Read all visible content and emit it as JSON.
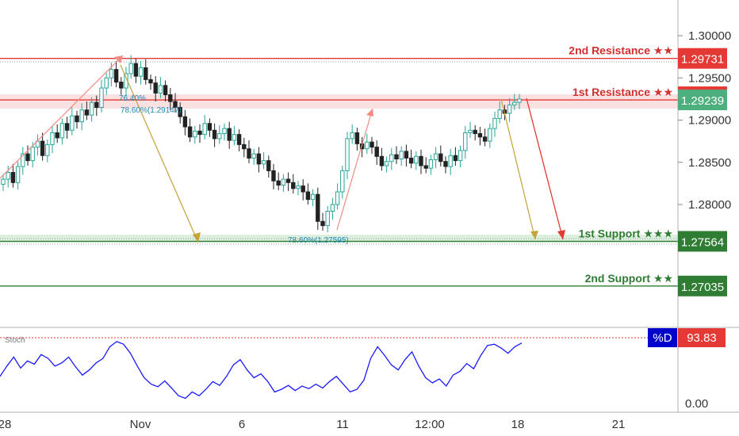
{
  "chart_data": {
    "type": "candlestick",
    "price_axis": {
      "ylim": [
        1.2675,
        1.3015
      ],
      "ticks": [
        "1.30000",
        "1.29500",
        "1.29000",
        "1.28500",
        "1.28000"
      ]
    },
    "time_axis": {
      "ticks": [
        "28",
        "Nov",
        "6",
        "11",
        "12:00",
        "18",
        "21"
      ]
    },
    "levels": [
      {
        "name": "2nd Resistance",
        "stars": "★★",
        "value": "1.29731",
        "price": 1.29731,
        "color": "#e53935",
        "label_color": "#d32f2f"
      },
      {
        "name": "1st Resistance",
        "stars": "★★",
        "value": "1.29239",
        "price": 1.29239,
        "color": "#e53935",
        "label_color": "#d32f2f"
      },
      {
        "name": "1st Support",
        "stars": "★★★",
        "value": "1.27564",
        "price": 1.27564,
        "color": "#2e7d32",
        "label_color": "#2e7d32"
      },
      {
        "name": "2nd Support",
        "stars": "★★",
        "value": "1.27035",
        "price": 1.27035,
        "color": "#2e7d32",
        "label_color": "#2e7d32"
      }
    ],
    "current_price": {
      "value": "1.29239",
      "color": "#4caf7d"
    },
    "fib_labels": [
      "76.40%",
      "78.60%(1.29147)",
      "78.60%(1.27595)"
    ],
    "candles_close": [
      1.283,
      1.2838,
      1.2826,
      1.2845,
      1.286,
      1.2852,
      1.2868,
      1.2875,
      1.2858,
      1.2871,
      1.2885,
      1.2879,
      1.2896,
      1.2888,
      1.2905,
      1.2898,
      1.2912,
      1.2906,
      1.2921,
      1.2915,
      1.2938,
      1.295,
      1.296,
      1.2945,
      1.2938,
      1.2955,
      1.2967,
      1.2952,
      1.2962,
      1.2948,
      1.2944,
      1.2932,
      1.2941,
      1.293,
      1.2922,
      1.2915,
      1.2904,
      1.2892,
      1.288,
      1.2887,
      1.2883,
      1.2896,
      1.2888,
      1.2878,
      1.2884,
      1.289,
      1.2876,
      1.2883,
      1.2871,
      1.2866,
      1.2855,
      1.286,
      1.2848,
      1.2852,
      1.284,
      1.2828,
      1.2823,
      1.283,
      1.2826,
      1.2819,
      1.2822,
      1.2815,
      1.2806,
      1.2812,
      1.278,
      1.2775,
      1.2792,
      1.28,
      1.2815,
      1.284,
      1.2878,
      1.2885,
      1.2872,
      1.2866,
      1.2874,
      1.2868,
      1.2857,
      1.2846,
      1.2851,
      1.2859,
      1.2854,
      1.2863,
      1.2855,
      1.2849,
      1.2857,
      1.2846,
      1.2843,
      1.2853,
      1.286,
      1.2851,
      1.2845,
      1.2858,
      1.2852,
      1.2864,
      1.2885,
      1.2888,
      1.2884,
      1.288,
      1.2875,
      1.289,
      1.2902,
      1.2912,
      1.2908,
      1.2918,
      1.2921,
      1.2925
    ],
    "stochastic": {
      "name": "Stoch",
      "series_name": "%D",
      "value": "93.83",
      "ylim": [
        0,
        100
      ],
      "ticks": [
        "0.00"
      ],
      "values": [
        42,
        58,
        72,
        55,
        66,
        61,
        76,
        70,
        58,
        63,
        72,
        57,
        44,
        52,
        63,
        70,
        88,
        96,
        92,
        78,
        58,
        40,
        30,
        26,
        35,
        24,
        12,
        8,
        18,
        12,
        22,
        34,
        28,
        42,
        60,
        68,
        52,
        40,
        46,
        34,
        18,
        22,
        28,
        20,
        27,
        23,
        30,
        24,
        34,
        42,
        30,
        18,
        22,
        36,
        70,
        88,
        75,
        60,
        52,
        68,
        80,
        58,
        40,
        32,
        38,
        27,
        44,
        50,
        62,
        54,
        74,
        90,
        92,
        86,
        78,
        88,
        93.83
      ],
      "overbought_level": 95,
      "series_color": "#1a1aff",
      "label_color": "#0000cc",
      "value_color": "#e53935"
    },
    "colors": {
      "up": "#26a69a",
      "down": "#222222",
      "projection_up": "#f28b82",
      "projection_down": "#c4a23c",
      "projection_red": "#e53935"
    }
  }
}
